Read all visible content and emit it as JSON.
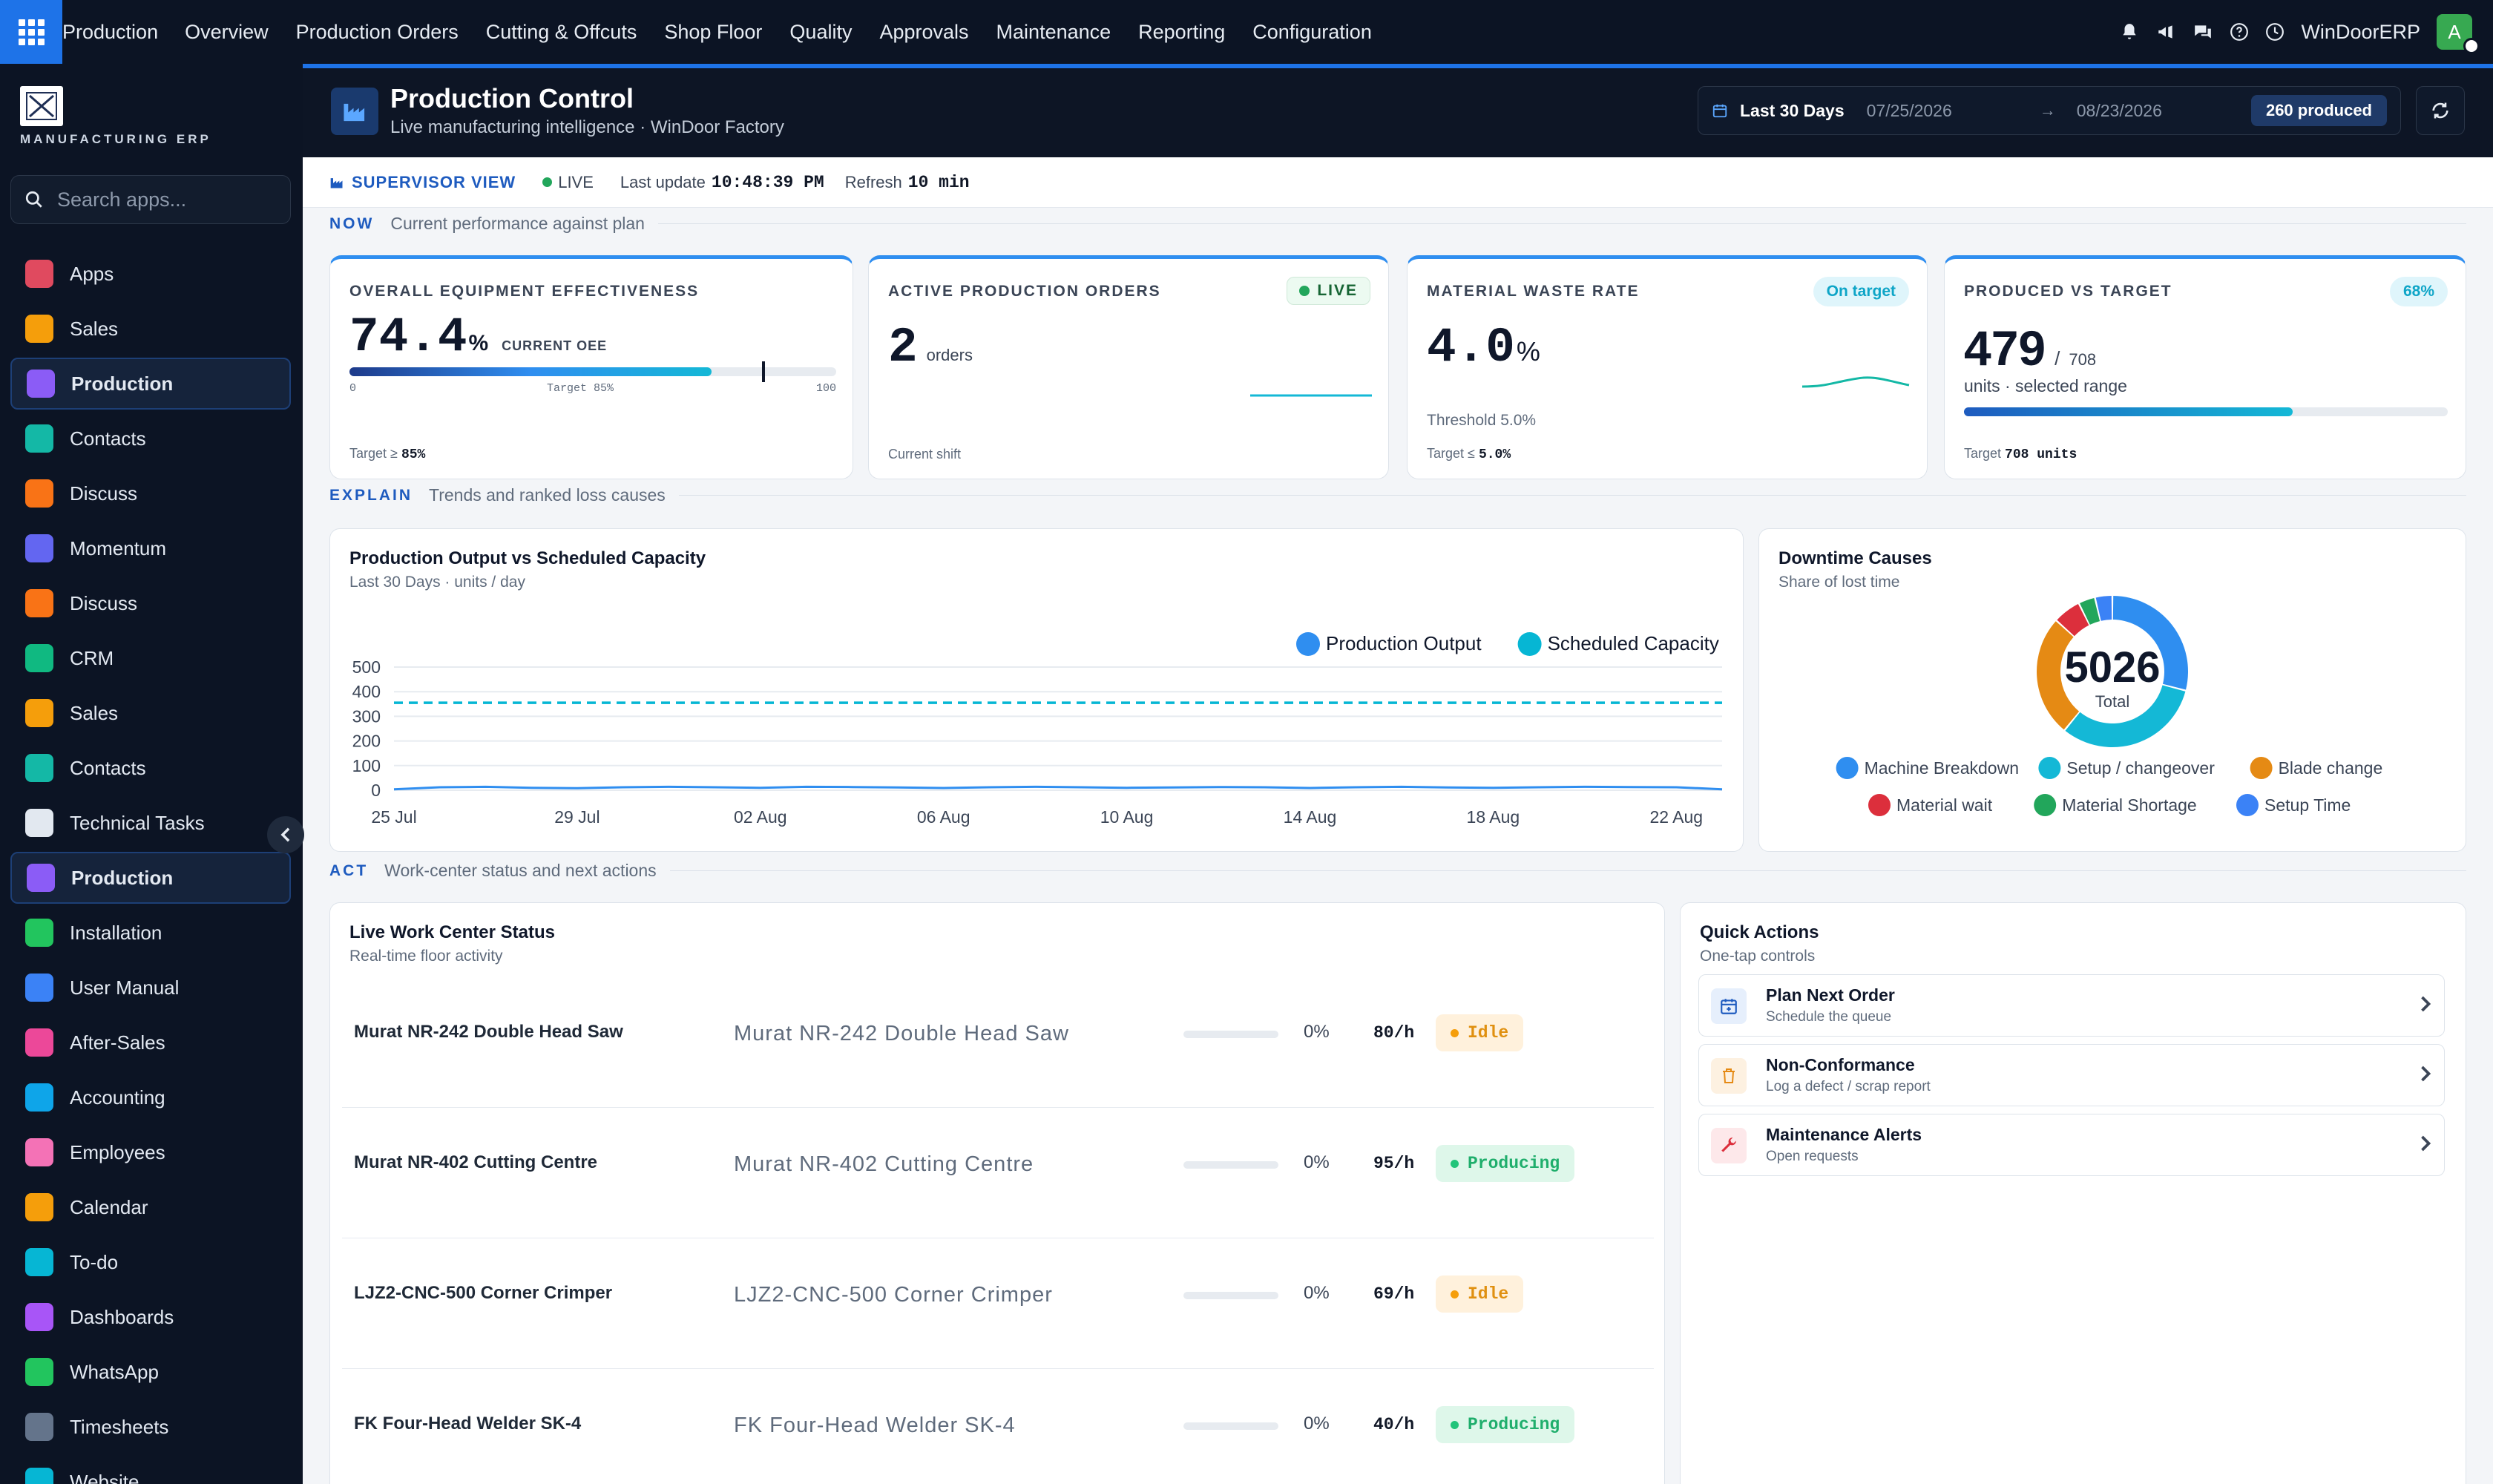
{
  "topbar": {
    "brand": "Production",
    "nav": [
      "Overview",
      "Production Orders",
      "Cutting & Offcuts",
      "Shop Floor",
      "Quality",
      "Approvals",
      "Maintenance",
      "Reporting",
      "Configuration"
    ],
    "company": "WinDoorERP",
    "avatar_initial": "A",
    "icons": [
      "bell-icon",
      "megaphone-icon",
      "chat-icon",
      "help-icon",
      "clock-icon"
    ]
  },
  "sidebar": {
    "logo_text": "MANUFACTURING ERP",
    "search_placeholder": "Search apps...",
    "items": [
      {
        "label": "Apps",
        "icon": "apps-icon",
        "color": "#e04a5f",
        "active": false
      },
      {
        "label": "Sales",
        "icon": "sales-icon",
        "color": "#f59e0b",
        "active": false
      },
      {
        "label": "Production",
        "icon": "production-icon",
        "color": "#8b5cf6",
        "active": true
      },
      {
        "label": "Contacts",
        "icon": "contacts-icon",
        "color": "#14b8a6",
        "active": false
      },
      {
        "label": "Discuss",
        "icon": "discuss-icon",
        "color": "#f97316",
        "active": false
      },
      {
        "label": "Momentum",
        "icon": "momentum-icon",
        "color": "#6366f1",
        "active": false
      },
      {
        "label": "Discuss",
        "icon": "discuss-icon",
        "color": "#f97316",
        "active": false
      },
      {
        "label": "CRM",
        "icon": "crm-icon",
        "color": "#10b981",
        "active": false
      },
      {
        "label": "Sales",
        "icon": "sales-icon",
        "color": "#f59e0b",
        "active": false
      },
      {
        "label": "Contacts",
        "icon": "contacts-icon",
        "color": "#14b8a6",
        "active": false
      },
      {
        "label": "Technical Tasks",
        "icon": "technical-tasks-icon",
        "color": "#e2e8f0",
        "active": false
      },
      {
        "label": "Production",
        "icon": "production-icon",
        "color": "#8b5cf6",
        "active": true
      },
      {
        "label": "Installation",
        "icon": "installation-icon",
        "color": "#22c55e",
        "active": false
      },
      {
        "label": "User Manual",
        "icon": "user-manual-icon",
        "color": "#3b82f6",
        "active": false
      },
      {
        "label": "After-Sales",
        "icon": "after-sales-icon",
        "color": "#ec4899",
        "active": false
      },
      {
        "label": "Accounting",
        "icon": "accounting-icon",
        "color": "#0ea5e9",
        "active": false
      },
      {
        "label": "Employees",
        "icon": "employees-icon",
        "color": "#f472b6",
        "active": false
      },
      {
        "label": "Calendar",
        "icon": "calendar-icon",
        "color": "#f59e0b",
        "active": false
      },
      {
        "label": "To-do",
        "icon": "todo-icon",
        "color": "#06b6d4",
        "active": false
      },
      {
        "label": "Dashboards",
        "icon": "dashboards-icon",
        "color": "#a855f7",
        "active": false
      },
      {
        "label": "WhatsApp",
        "icon": "whatsapp-icon",
        "color": "#22c55e",
        "active": false
      },
      {
        "label": "Timesheets",
        "icon": "timesheets-icon",
        "color": "#64748b",
        "active": false
      },
      {
        "label": "Website",
        "icon": "website-icon",
        "color": "#06b6d4",
        "active": false
      }
    ]
  },
  "page_header": {
    "title": "Production Control",
    "subtitle": "Live manufacturing intelligence · WinDoor Factory",
    "range_label": "Last 30 Days",
    "date_from": "07/25/2026",
    "date_to": "08/23/2026",
    "arrow": "→",
    "produced_badge": "260 produced"
  },
  "supervisor": {
    "view_label": "SUPERVISOR VIEW",
    "live_label": "LIVE",
    "last_update_label": "Last update",
    "last_update_value": "10:48:39 PM",
    "refresh_label": "Refresh",
    "refresh_value": "10 min"
  },
  "sections": {
    "now": {
      "tag": "NOW",
      "desc": "Current performance against plan"
    },
    "explain": {
      "tag": "EXPLAIN",
      "desc": "Trends and ranked loss causes"
    },
    "act": {
      "tag": "ACT",
      "desc": "Work-center status and next actions"
    }
  },
  "kpis": {
    "oee": {
      "label": "OVERALL EQUIPMENT EFFECTIVENESS",
      "value": "74.4",
      "unit": "%",
      "caption": "CURRENT OEE",
      "scale_min": "0",
      "scale_target": "Target 85%",
      "scale_max": "100",
      "fill_pct": 74.4,
      "target_pct": 85,
      "foot_prefix": "Target ≥",
      "foot_value": "85%"
    },
    "orders": {
      "label": "ACTIVE PRODUCTION ORDERS",
      "pill": "LIVE",
      "value": "2",
      "unit": "orders",
      "foot": "Current shift"
    },
    "waste": {
      "label": "MATERIAL WASTE RATE",
      "pill": "On target",
      "value": "4.0",
      "unit": "%",
      "threshold": "Threshold 5.0%",
      "foot_prefix": "Target ≤",
      "foot_value": "5.0%"
    },
    "produced": {
      "label": "PRODUCED VS TARGET",
      "pill": "68%",
      "value": "479",
      "separator": "/",
      "target": "708",
      "caption": "units · selected range",
      "fill_pct": 68,
      "foot_prefix": "Target",
      "foot_value": "708 units"
    }
  },
  "output_chart": {
    "title": "Production Output vs Scheduled Capacity",
    "subtitle": "Last 30 Days · units / day"
  },
  "downtime_chart": {
    "title": "Downtime Causes",
    "subtitle": "Share of lost time",
    "center_value": "5026",
    "center_label": "Total"
  },
  "chart_data": [
    {
      "type": "line",
      "title": "Production Output vs Scheduled Capacity",
      "ylim": [
        0,
        500
      ],
      "y_ticks": [
        "500",
        "400",
        "300",
        "200",
        "100",
        "0"
      ],
      "x_ticks": [
        "25 Jul",
        "29 Jul",
        "02 Aug",
        "06 Aug",
        "10 Aug",
        "14 Aug",
        "18 Aug",
        "22 Aug"
      ],
      "x": [
        "25 Jul",
        "26 Jul",
        "27 Jul",
        "28 Jul",
        "29 Jul",
        "30 Jul",
        "31 Jul",
        "01 Aug",
        "02 Aug",
        "03 Aug",
        "04 Aug",
        "05 Aug",
        "06 Aug",
        "07 Aug",
        "08 Aug",
        "09 Aug",
        "10 Aug",
        "11 Aug",
        "12 Aug",
        "13 Aug",
        "14 Aug",
        "15 Aug",
        "16 Aug",
        "17 Aug",
        "18 Aug",
        "19 Aug",
        "20 Aug",
        "21 Aug",
        "22 Aug",
        "23 Aug"
      ],
      "series": [
        {
          "name": "Production Output",
          "color": "#2f8ef0",
          "dashed": false,
          "values": [
            4,
            12,
            14,
            10,
            8,
            12,
            14,
            12,
            10,
            14,
            13,
            11,
            9,
            12,
            14,
            12,
            10,
            11,
            13,
            12,
            9,
            12,
            14,
            11,
            10,
            12,
            14,
            13,
            12,
            4
          ]
        },
        {
          "name": "Scheduled Capacity",
          "color": "#06b6d4",
          "dashed": true,
          "values": [
            355,
            355,
            355,
            355,
            355,
            355,
            355,
            355,
            355,
            355,
            355,
            355,
            355,
            355,
            355,
            355,
            355,
            355,
            355,
            355,
            355,
            355,
            355,
            355,
            355,
            355,
            355,
            355,
            355,
            355
          ]
        }
      ],
      "grid": true,
      "legend": "top-right"
    },
    {
      "type": "pie",
      "title": "Downtime Causes",
      "categories": [
        "Machine Breakdown",
        "Setup / changeover",
        "Blade change",
        "Material wait",
        "Material Shortage",
        "Setup Time"
      ],
      "values": [
        1460,
        1600,
        1300,
        300,
        180,
        186
      ],
      "colors": [
        "#2f8ef0",
        "#14b8d6",
        "#e58a14",
        "#dc2f3c",
        "#22a65b",
        "#3b82f6"
      ],
      "legend": "bottom"
    }
  ],
  "work_centers": {
    "title": "Live Work Center Status",
    "subtitle": "Real-time floor activity",
    "rows": [
      {
        "name": "Murat NR-242 Double Head Saw",
        "machine": "Murat NR-242 Double Head Saw",
        "pct": "0%",
        "progress": 0,
        "rate": "80/h",
        "status": "Idle",
        "status_kind": "idle"
      },
      {
        "name": "Murat NR-402 Cutting Centre",
        "machine": "Murat NR-402 Cutting Centre",
        "pct": "0%",
        "progress": 0,
        "rate": "95/h",
        "status": "Producing",
        "status_kind": "producing"
      },
      {
        "name": "LJZ2-CNC-500 Corner Crimper",
        "machine": "LJZ2-CNC-500 Corner Crimper",
        "pct": "0%",
        "progress": 0,
        "rate": "69/h",
        "status": "Idle",
        "status_kind": "idle"
      },
      {
        "name": "FK Four-Head Welder SK-4",
        "machine": "FK Four-Head Welder SK-4",
        "pct": "0%",
        "progress": 0,
        "rate": "40/h",
        "status": "Producing",
        "status_kind": "producing"
      }
    ]
  },
  "quick_actions": {
    "title": "Quick Actions",
    "subtitle": "One-tap controls",
    "items": [
      {
        "title": "Plan Next Order",
        "sub": "Schedule the queue",
        "icon": "calendar-plus-icon",
        "color": "#1e5bbf",
        "bg": "#e6effc"
      },
      {
        "title": "Non-Conformance",
        "sub": "Log a defect / scrap report",
        "icon": "trash-icon",
        "color": "#e58a14",
        "bg": "#fdf1e1"
      },
      {
        "title": "Maintenance Alerts",
        "sub": "Open requests",
        "icon": "wrench-icon",
        "color": "#dc2f3c",
        "bg": "#fde8ea"
      }
    ]
  }
}
